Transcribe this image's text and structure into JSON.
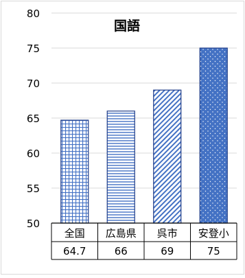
{
  "chart_data": {
    "type": "bar",
    "title": "国語",
    "categories": [
      "全国",
      "広島県",
      "呉市",
      "安登小"
    ],
    "values": [
      64.7,
      66,
      69,
      75
    ],
    "value_labels": [
      "64.7",
      "66",
      "69",
      "75"
    ],
    "ylim": [
      50,
      80
    ],
    "yticks": [
      "50",
      "55",
      "60",
      "65",
      "70",
      "75",
      "80"
    ],
    "grid": true,
    "data_table": true,
    "colors": {
      "bar_blue": "#4472C4",
      "bar_outline": "#1F3C88",
      "grid": "#D9D9D9",
      "axis": "#000000",
      "text": "#000000"
    },
    "patterns": [
      "grid",
      "horizontal-lines",
      "diagonal-stripes",
      "dotted"
    ]
  }
}
